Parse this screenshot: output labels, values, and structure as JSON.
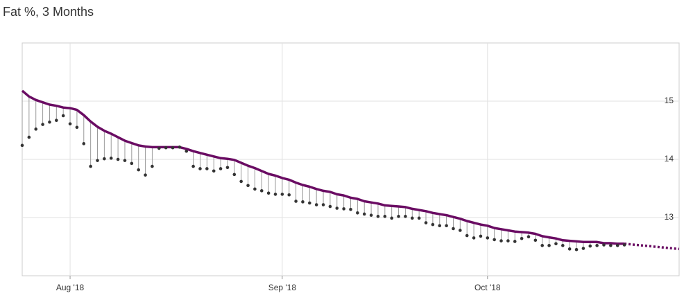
{
  "chart_data": {
    "type": "trend",
    "title": "Fat %, 3 Months",
    "x": [
      0,
      1,
      2,
      3,
      4,
      5,
      6,
      7,
      8,
      9,
      10,
      11,
      12,
      13,
      14,
      15,
      16,
      17,
      18,
      19,
      20,
      21,
      22,
      23,
      24,
      25,
      26,
      27,
      28,
      29,
      30,
      31,
      32,
      33,
      34,
      35,
      36,
      37,
      38,
      39,
      40,
      41,
      42,
      43,
      44,
      45,
      46,
      47,
      48,
      49,
      50,
      51,
      52,
      53,
      54,
      55,
      56,
      57,
      58,
      59,
      60,
      61,
      62,
      63,
      64,
      65,
      66,
      67,
      68,
      69,
      70,
      71,
      72,
      73,
      74,
      75,
      76,
      77,
      78,
      79,
      80,
      81,
      82,
      83,
      84,
      85,
      86,
      87,
      88
    ],
    "series": [
      {
        "style": "line",
        "color": "#6a0c63",
        "values": [
          15.18,
          15.08,
          15.02,
          14.98,
          14.94,
          14.92,
          14.89,
          14.88,
          14.85,
          14.76,
          14.65,
          14.56,
          14.49,
          14.44,
          14.38,
          14.32,
          14.28,
          14.24,
          14.22,
          14.21,
          14.21,
          14.21,
          14.21,
          14.21,
          14.18,
          14.14,
          14.11,
          14.08,
          14.05,
          14.02,
          14.01,
          13.99,
          13.94,
          13.89,
          13.85,
          13.8,
          13.75,
          13.72,
          13.68,
          13.65,
          13.6,
          13.56,
          13.53,
          13.49,
          13.46,
          13.44,
          13.4,
          13.38,
          13.34,
          13.32,
          13.28,
          13.26,
          13.24,
          13.21,
          13.2,
          13.19,
          13.18,
          13.15,
          13.13,
          13.11,
          13.08,
          13.06,
          13.04,
          13.01,
          12.98,
          12.94,
          12.91,
          12.88,
          12.86,
          12.82,
          12.8,
          12.78,
          12.76,
          12.75,
          12.74,
          12.72,
          12.68,
          12.66,
          12.64,
          12.61,
          12.6,
          12.59,
          12.58,
          12.58,
          12.58,
          12.56,
          12.56,
          12.55,
          12.55
        ]
      },
      {
        "style": "points",
        "color": "#333333",
        "stem_color": "#999999",
        "values": [
          14.24,
          14.38,
          14.52,
          14.6,
          14.64,
          14.67,
          14.75,
          14.61,
          14.55,
          14.27,
          13.88,
          13.98,
          14.01,
          14.02,
          14.0,
          13.98,
          13.93,
          13.82,
          13.73,
          13.88,
          14.19,
          14.2,
          14.2,
          14.21,
          14.14,
          13.88,
          13.84,
          13.84,
          13.8,
          13.84,
          13.86,
          13.74,
          13.62,
          13.55,
          13.49,
          13.46,
          13.42,
          13.4,
          13.4,
          13.39,
          13.28,
          13.27,
          13.25,
          13.22,
          13.22,
          13.19,
          13.16,
          13.15,
          13.14,
          13.08,
          13.06,
          13.04,
          13.02,
          13.02,
          12.99,
          13.02,
          13.02,
          12.99,
          12.99,
          12.91,
          12.88,
          12.86,
          12.86,
          12.81,
          12.78,
          12.69,
          12.65,
          12.68,
          12.65,
          12.62,
          12.6,
          12.6,
          12.59,
          12.64,
          12.67,
          12.61,
          12.52,
          12.52,
          12.55,
          12.52,
          12.46,
          12.45,
          12.47,
          12.51,
          12.52,
          12.53,
          12.52,
          12.52,
          12.53
        ]
      },
      {
        "style": "dotted",
        "color": "#6a0c63",
        "x": [
          88,
          96
        ],
        "values": [
          12.55,
          12.46
        ]
      }
    ],
    "xlim": [
      0,
      96
    ],
    "xticks": [
      {
        "value": 7,
        "label": "Aug '18"
      },
      {
        "value": 38,
        "label": "Sep '18"
      },
      {
        "value": 68,
        "label": "Oct '18"
      }
    ],
    "ylim": [
      12,
      16
    ],
    "yticks": [
      13,
      14,
      15
    ],
    "grid": true
  }
}
